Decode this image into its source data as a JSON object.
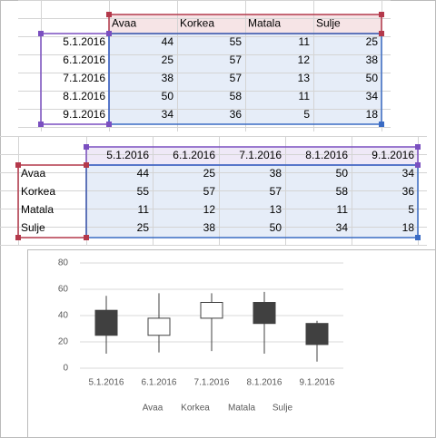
{
  "table1": {
    "header": [
      "Avaa",
      "Korkea",
      "Matala",
      "Sulje"
    ],
    "rows": [
      {
        "label": "5.1.2016",
        "cells": [
          44,
          55,
          11,
          25
        ]
      },
      {
        "label": "6.1.2016",
        "cells": [
          25,
          57,
          12,
          38
        ]
      },
      {
        "label": "7.1.2016",
        "cells": [
          38,
          57,
          13,
          50
        ]
      },
      {
        "label": "8.1.2016",
        "cells": [
          50,
          58,
          11,
          34
        ]
      },
      {
        "label": "9.1.2016",
        "cells": [
          34,
          36,
          5,
          18
        ]
      }
    ]
  },
  "table2": {
    "header": [
      "5.1.2016",
      "6.1.2016",
      "7.1.2016",
      "8.1.2016",
      "9.1.2016"
    ],
    "rows": [
      {
        "label": "Avaa",
        "cells": [
          44,
          25,
          38,
          50,
          34
        ]
      },
      {
        "label": "Korkea",
        "cells": [
          55,
          57,
          57,
          58,
          36
        ]
      },
      {
        "label": "Matala",
        "cells": [
          11,
          12,
          13,
          11,
          5
        ]
      },
      {
        "label": "Sulje",
        "cells": [
          25,
          38,
          50,
          34,
          18
        ]
      }
    ]
  },
  "chart_data": {
    "type": "candlestick",
    "categories": [
      "5.1.2016",
      "6.1.2016",
      "7.1.2016",
      "8.1.2016",
      "9.1.2016"
    ],
    "series": [
      {
        "name": "Avaa",
        "values": [
          44,
          25,
          38,
          50,
          34
        ]
      },
      {
        "name": "Korkea",
        "values": [
          55,
          57,
          57,
          58,
          36
        ]
      },
      {
        "name": "Matala",
        "values": [
          11,
          12,
          13,
          11,
          5
        ]
      },
      {
        "name": "Sulje",
        "values": [
          25,
          38,
          50,
          34,
          18
        ]
      }
    ],
    "ylim": [
      0,
      80
    ],
    "yticks": [
      0,
      20,
      40,
      60,
      80
    ],
    "grid": true,
    "up_color": "#ffffff",
    "down_color": "#404040"
  }
}
